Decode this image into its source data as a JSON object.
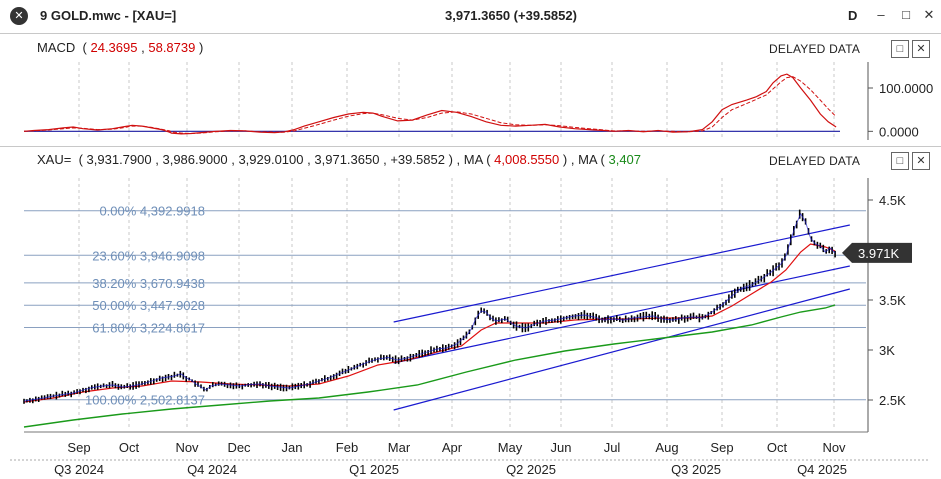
{
  "window": {
    "icon_name": "app-logo-icon",
    "title": "9 GOLD.mwc - [XAU=]",
    "quote": "3,971.3650 (+39.5852)",
    "period": "D",
    "minimize": "–",
    "maximize": "□",
    "close": "✕"
  },
  "macd": {
    "label": "MACD",
    "open_paren": "(",
    "val1": "24.3695",
    "comma": ",",
    "val2": "58.8739",
    "close_paren": ")",
    "delayed": "DELAYED DATA",
    "btn_max": "□",
    "btn_close": "✕",
    "axis_labels": [
      "100.0000",
      "0.0000"
    ],
    "axis_values": [
      100,
      0
    ],
    "ylim": [
      -20,
      160
    ],
    "line_color": "#d01010",
    "signal_color": "#d01010",
    "zero_color": "#1a1aa0",
    "macd": [
      [
        0,
        0
      ],
      [
        10,
        2
      ],
      [
        25,
        4
      ],
      [
        40,
        8
      ],
      [
        50,
        10
      ],
      [
        60,
        6
      ],
      [
        75,
        3
      ],
      [
        90,
        6
      ],
      [
        100,
        10
      ],
      [
        110,
        14
      ],
      [
        120,
        12
      ],
      [
        130,
        8
      ],
      [
        140,
        4
      ],
      [
        148,
        -2
      ],
      [
        150,
        -4
      ],
      [
        160,
        -6
      ],
      [
        170,
        -5
      ],
      [
        180,
        -3
      ],
      [
        195,
        0
      ],
      [
        210,
        2
      ],
      [
        225,
        1
      ],
      [
        240,
        -2
      ],
      [
        255,
        -3
      ],
      [
        265,
        -1
      ],
      [
        275,
        4
      ],
      [
        285,
        12
      ],
      [
        300,
        22
      ],
      [
        315,
        32
      ],
      [
        330,
        40
      ],
      [
        345,
        44
      ],
      [
        355,
        42
      ],
      [
        365,
        34
      ],
      [
        380,
        24
      ],
      [
        395,
        26
      ],
      [
        410,
        38
      ],
      [
        425,
        48
      ],
      [
        440,
        44
      ],
      [
        455,
        34
      ],
      [
        470,
        22
      ],
      [
        485,
        14
      ],
      [
        500,
        12
      ],
      [
        515,
        14
      ],
      [
        530,
        16
      ],
      [
        545,
        10
      ],
      [
        560,
        6
      ],
      [
        575,
        4
      ],
      [
        590,
        2
      ],
      [
        600,
        0
      ],
      [
        615,
        2
      ],
      [
        630,
        -1
      ],
      [
        645,
        2
      ],
      [
        660,
        -2
      ],
      [
        675,
        -1
      ],
      [
        690,
        4
      ],
      [
        700,
        22
      ],
      [
        710,
        50
      ],
      [
        720,
        62
      ],
      [
        735,
        72
      ],
      [
        745,
        80
      ],
      [
        755,
        92
      ],
      [
        762,
        112
      ],
      [
        770,
        128
      ],
      [
        776,
        132
      ],
      [
        782,
        124
      ],
      [
        790,
        100
      ],
      [
        800,
        72
      ],
      [
        810,
        40
      ],
      [
        818,
        22
      ],
      [
        826,
        10
      ]
    ],
    "signal": [
      [
        0,
        0
      ],
      [
        10,
        1
      ],
      [
        25,
        3
      ],
      [
        40,
        6
      ],
      [
        50,
        8
      ],
      [
        60,
        7
      ],
      [
        75,
        4
      ],
      [
        90,
        5
      ],
      [
        100,
        8
      ],
      [
        110,
        12
      ],
      [
        120,
        12
      ],
      [
        130,
        9
      ],
      [
        140,
        5
      ],
      [
        148,
        1
      ],
      [
        150,
        -1
      ],
      [
        160,
        -4
      ],
      [
        170,
        -5
      ],
      [
        180,
        -4
      ],
      [
        195,
        -1
      ],
      [
        210,
        1
      ],
      [
        225,
        1
      ],
      [
        240,
        -1
      ],
      [
        255,
        -2
      ],
      [
        265,
        -2
      ],
      [
        275,
        1
      ],
      [
        285,
        7
      ],
      [
        300,
        16
      ],
      [
        315,
        26
      ],
      [
        330,
        35
      ],
      [
        345,
        41
      ],
      [
        355,
        42
      ],
      [
        365,
        38
      ],
      [
        380,
        30
      ],
      [
        395,
        26
      ],
      [
        410,
        32
      ],
      [
        425,
        42
      ],
      [
        440,
        45
      ],
      [
        455,
        40
      ],
      [
        470,
        30
      ],
      [
        485,
        20
      ],
      [
        500,
        15
      ],
      [
        515,
        14
      ],
      [
        530,
        15
      ],
      [
        545,
        13
      ],
      [
        560,
        9
      ],
      [
        575,
        6
      ],
      [
        590,
        3
      ],
      [
        600,
        1
      ],
      [
        615,
        1
      ],
      [
        630,
        0
      ],
      [
        645,
        1
      ],
      [
        660,
        0
      ],
      [
        675,
        -1
      ],
      [
        690,
        1
      ],
      [
        700,
        10
      ],
      [
        710,
        32
      ],
      [
        720,
        50
      ],
      [
        735,
        64
      ],
      [
        745,
        74
      ],
      [
        755,
        84
      ],
      [
        762,
        98
      ],
      [
        770,
        114
      ],
      [
        776,
        124
      ],
      [
        782,
        126
      ],
      [
        790,
        116
      ],
      [
        800,
        96
      ],
      [
        810,
        72
      ],
      [
        818,
        52
      ],
      [
        826,
        34
      ]
    ]
  },
  "price": {
    "symbol": "XAU=",
    "open_paren": "(",
    "open": "3,931.7900",
    "high": "3,986.9000",
    "low": "3,929.0100",
    "close": "3,971.3650",
    "change": "+39.5852",
    "close_paren": ")",
    "comma": ",",
    "ma_label": "MA",
    "ma1_value": "4,008.5550",
    "ma2_value": "3,407",
    "delayed": "DELAYED DATA",
    "btn_max": "□",
    "btn_close": "✕",
    "last_label": "3.971K",
    "last_value": 3971,
    "axis_labels": [
      "4.5K",
      "3.5K",
      "3K",
      "2.5K"
    ],
    "axis_values": [
      4500,
      3500,
      3000,
      2500
    ],
    "ylim": [
      2200,
      4700
    ],
    "fib_levels": [
      {
        "label": "0.00% 4,392.9918",
        "value": 4392.99
      },
      {
        "label": "23.60% 3,946.9098",
        "value": 3946.91
      },
      {
        "label": "38.20% 3,670.9438",
        "value": 3670.94
      },
      {
        "label": "50.00% 3,447.9028",
        "value": 3447.9
      },
      {
        "label": "61.80% 3,224.8617",
        "value": 3224.86
      },
      {
        "label": "100.00% 2,502.8137",
        "value": 2502.81
      }
    ],
    "channel": [
      {
        "start": [
          376,
          3280
        ],
        "end": [
          840,
          4250
        ]
      },
      {
        "start": [
          376,
          2870
        ],
        "end": [
          840,
          3840
        ]
      },
      {
        "start": [
          376,
          2400
        ],
        "end": [
          840,
          3610
        ]
      }
    ],
    "colors": {
      "candle": "#000000",
      "ma_short": "#e01010",
      "ma_long": "#1a9a1a",
      "channel": "#1a1ad0",
      "fib": "#8aa0c0",
      "fib_text": "#6f8fb8",
      "last_box": "#333333"
    },
    "series": [
      [
        0,
        2488
      ],
      [
        10,
        2505
      ],
      [
        20,
        2520
      ],
      [
        30,
        2540
      ],
      [
        40,
        2555
      ],
      [
        50,
        2570
      ],
      [
        60,
        2600
      ],
      [
        70,
        2625
      ],
      [
        80,
        2640
      ],
      [
        90,
        2650
      ],
      [
        100,
        2630
      ],
      [
        110,
        2640
      ],
      [
        120,
        2660
      ],
      [
        130,
        2690
      ],
      [
        140,
        2720
      ],
      [
        150,
        2735
      ],
      [
        160,
        2760
      ],
      [
        165,
        2720
      ],
      [
        170,
        2700
      ],
      [
        175,
        2660
      ],
      [
        180,
        2630
      ],
      [
        185,
        2600
      ],
      [
        190,
        2640
      ],
      [
        200,
        2660
      ],
      [
        210,
        2650
      ],
      [
        220,
        2640
      ],
      [
        230,
        2655
      ],
      [
        240,
        2660
      ],
      [
        250,
        2640
      ],
      [
        260,
        2630
      ],
      [
        270,
        2620
      ],
      [
        280,
        2640
      ],
      [
        290,
        2660
      ],
      [
        300,
        2690
      ],
      [
        310,
        2720
      ],
      [
        320,
        2760
      ],
      [
        330,
        2800
      ],
      [
        340,
        2840
      ],
      [
        350,
        2880
      ],
      [
        360,
        2910
      ],
      [
        370,
        2925
      ],
      [
        380,
        2900
      ],
      [
        390,
        2920
      ],
      [
        400,
        2950
      ],
      [
        410,
        2980
      ],
      [
        420,
        3010
      ],
      [
        430,
        3020
      ],
      [
        440,
        3060
      ],
      [
        450,
        3140
      ],
      [
        455,
        3210
      ],
      [
        460,
        3320
      ],
      [
        465,
        3390
      ],
      [
        470,
        3380
      ],
      [
        475,
        3320
      ],
      [
        480,
        3290
      ],
      [
        490,
        3310
      ],
      [
        500,
        3240
      ],
      [
        510,
        3220
      ],
      [
        520,
        3260
      ],
      [
        530,
        3290
      ],
      [
        540,
        3300
      ],
      [
        550,
        3320
      ],
      [
        560,
        3340
      ],
      [
        570,
        3350
      ],
      [
        580,
        3330
      ],
      [
        590,
        3300
      ],
      [
        600,
        3310
      ],
      [
        610,
        3300
      ],
      [
        620,
        3320
      ],
      [
        630,
        3330
      ],
      [
        640,
        3340
      ],
      [
        650,
        3310
      ],
      [
        660,
        3300
      ],
      [
        670,
        3320
      ],
      [
        680,
        3330
      ],
      [
        690,
        3320
      ],
      [
        700,
        3380
      ],
      [
        710,
        3450
      ],
      [
        720,
        3540
      ],
      [
        730,
        3620
      ],
      [
        740,
        3650
      ],
      [
        750,
        3710
      ],
      [
        760,
        3780
      ],
      [
        770,
        3860
      ],
      [
        775,
        3940
      ],
      [
        780,
        4100
      ],
      [
        785,
        4250
      ],
      [
        790,
        4360
      ],
      [
        795,
        4280
      ],
      [
        800,
        4120
      ],
      [
        805,
        4060
      ],
      [
        810,
        4040
      ],
      [
        815,
        3980
      ],
      [
        820,
        4020
      ],
      [
        825,
        3970
      ]
    ],
    "ma_short": [
      [
        0,
        2480
      ],
      [
        30,
        2520
      ],
      [
        60,
        2580
      ],
      [
        90,
        2620
      ],
      [
        120,
        2640
      ],
      [
        150,
        2690
      ],
      [
        180,
        2680
      ],
      [
        210,
        2660
      ],
      [
        240,
        2650
      ],
      [
        270,
        2640
      ],
      [
        300,
        2660
      ],
      [
        330,
        2740
      ],
      [
        360,
        2850
      ],
      [
        390,
        2900
      ],
      [
        420,
        2980
      ],
      [
        445,
        3040
      ],
      [
        465,
        3200
      ],
      [
        480,
        3270
      ],
      [
        500,
        3270
      ],
      [
        530,
        3270
      ],
      [
        560,
        3300
      ],
      [
        590,
        3310
      ],
      [
        620,
        3310
      ],
      [
        650,
        3320
      ],
      [
        680,
        3320
      ],
      [
        700,
        3340
      ],
      [
        720,
        3440
      ],
      [
        740,
        3560
      ],
      [
        760,
        3680
      ],
      [
        775,
        3800
      ],
      [
        790,
        3980
      ],
      [
        800,
        4060
      ],
      [
        815,
        4030
      ],
      [
        825,
        3990
      ]
    ],
    "ma_long": [
      [
        0,
        2230
      ],
      [
        50,
        2300
      ],
      [
        100,
        2360
      ],
      [
        150,
        2410
      ],
      [
        200,
        2450
      ],
      [
        250,
        2490
      ],
      [
        300,
        2520
      ],
      [
        350,
        2580
      ],
      [
        400,
        2650
      ],
      [
        450,
        2780
      ],
      [
        500,
        2900
      ],
      [
        550,
        2990
      ],
      [
        600,
        3060
      ],
      [
        650,
        3120
      ],
      [
        700,
        3180
      ],
      [
        740,
        3250
      ],
      [
        770,
        3330
      ],
      [
        790,
        3380
      ],
      [
        815,
        3420
      ],
      [
        825,
        3450
      ]
    ]
  },
  "xaxis": {
    "months": [
      "Sep",
      "Oct",
      "Nov",
      "Dec",
      "Jan",
      "Feb",
      "Mar",
      "Apr",
      "May",
      "Jun",
      "Jul",
      "Aug",
      "Sep",
      "Oct",
      "Nov"
    ],
    "quarters": [
      "Q3 2024",
      "Q4 2024",
      "Q1 2025",
      "Q2 2025",
      "Q3 2025",
      "Q4 2025"
    ]
  }
}
